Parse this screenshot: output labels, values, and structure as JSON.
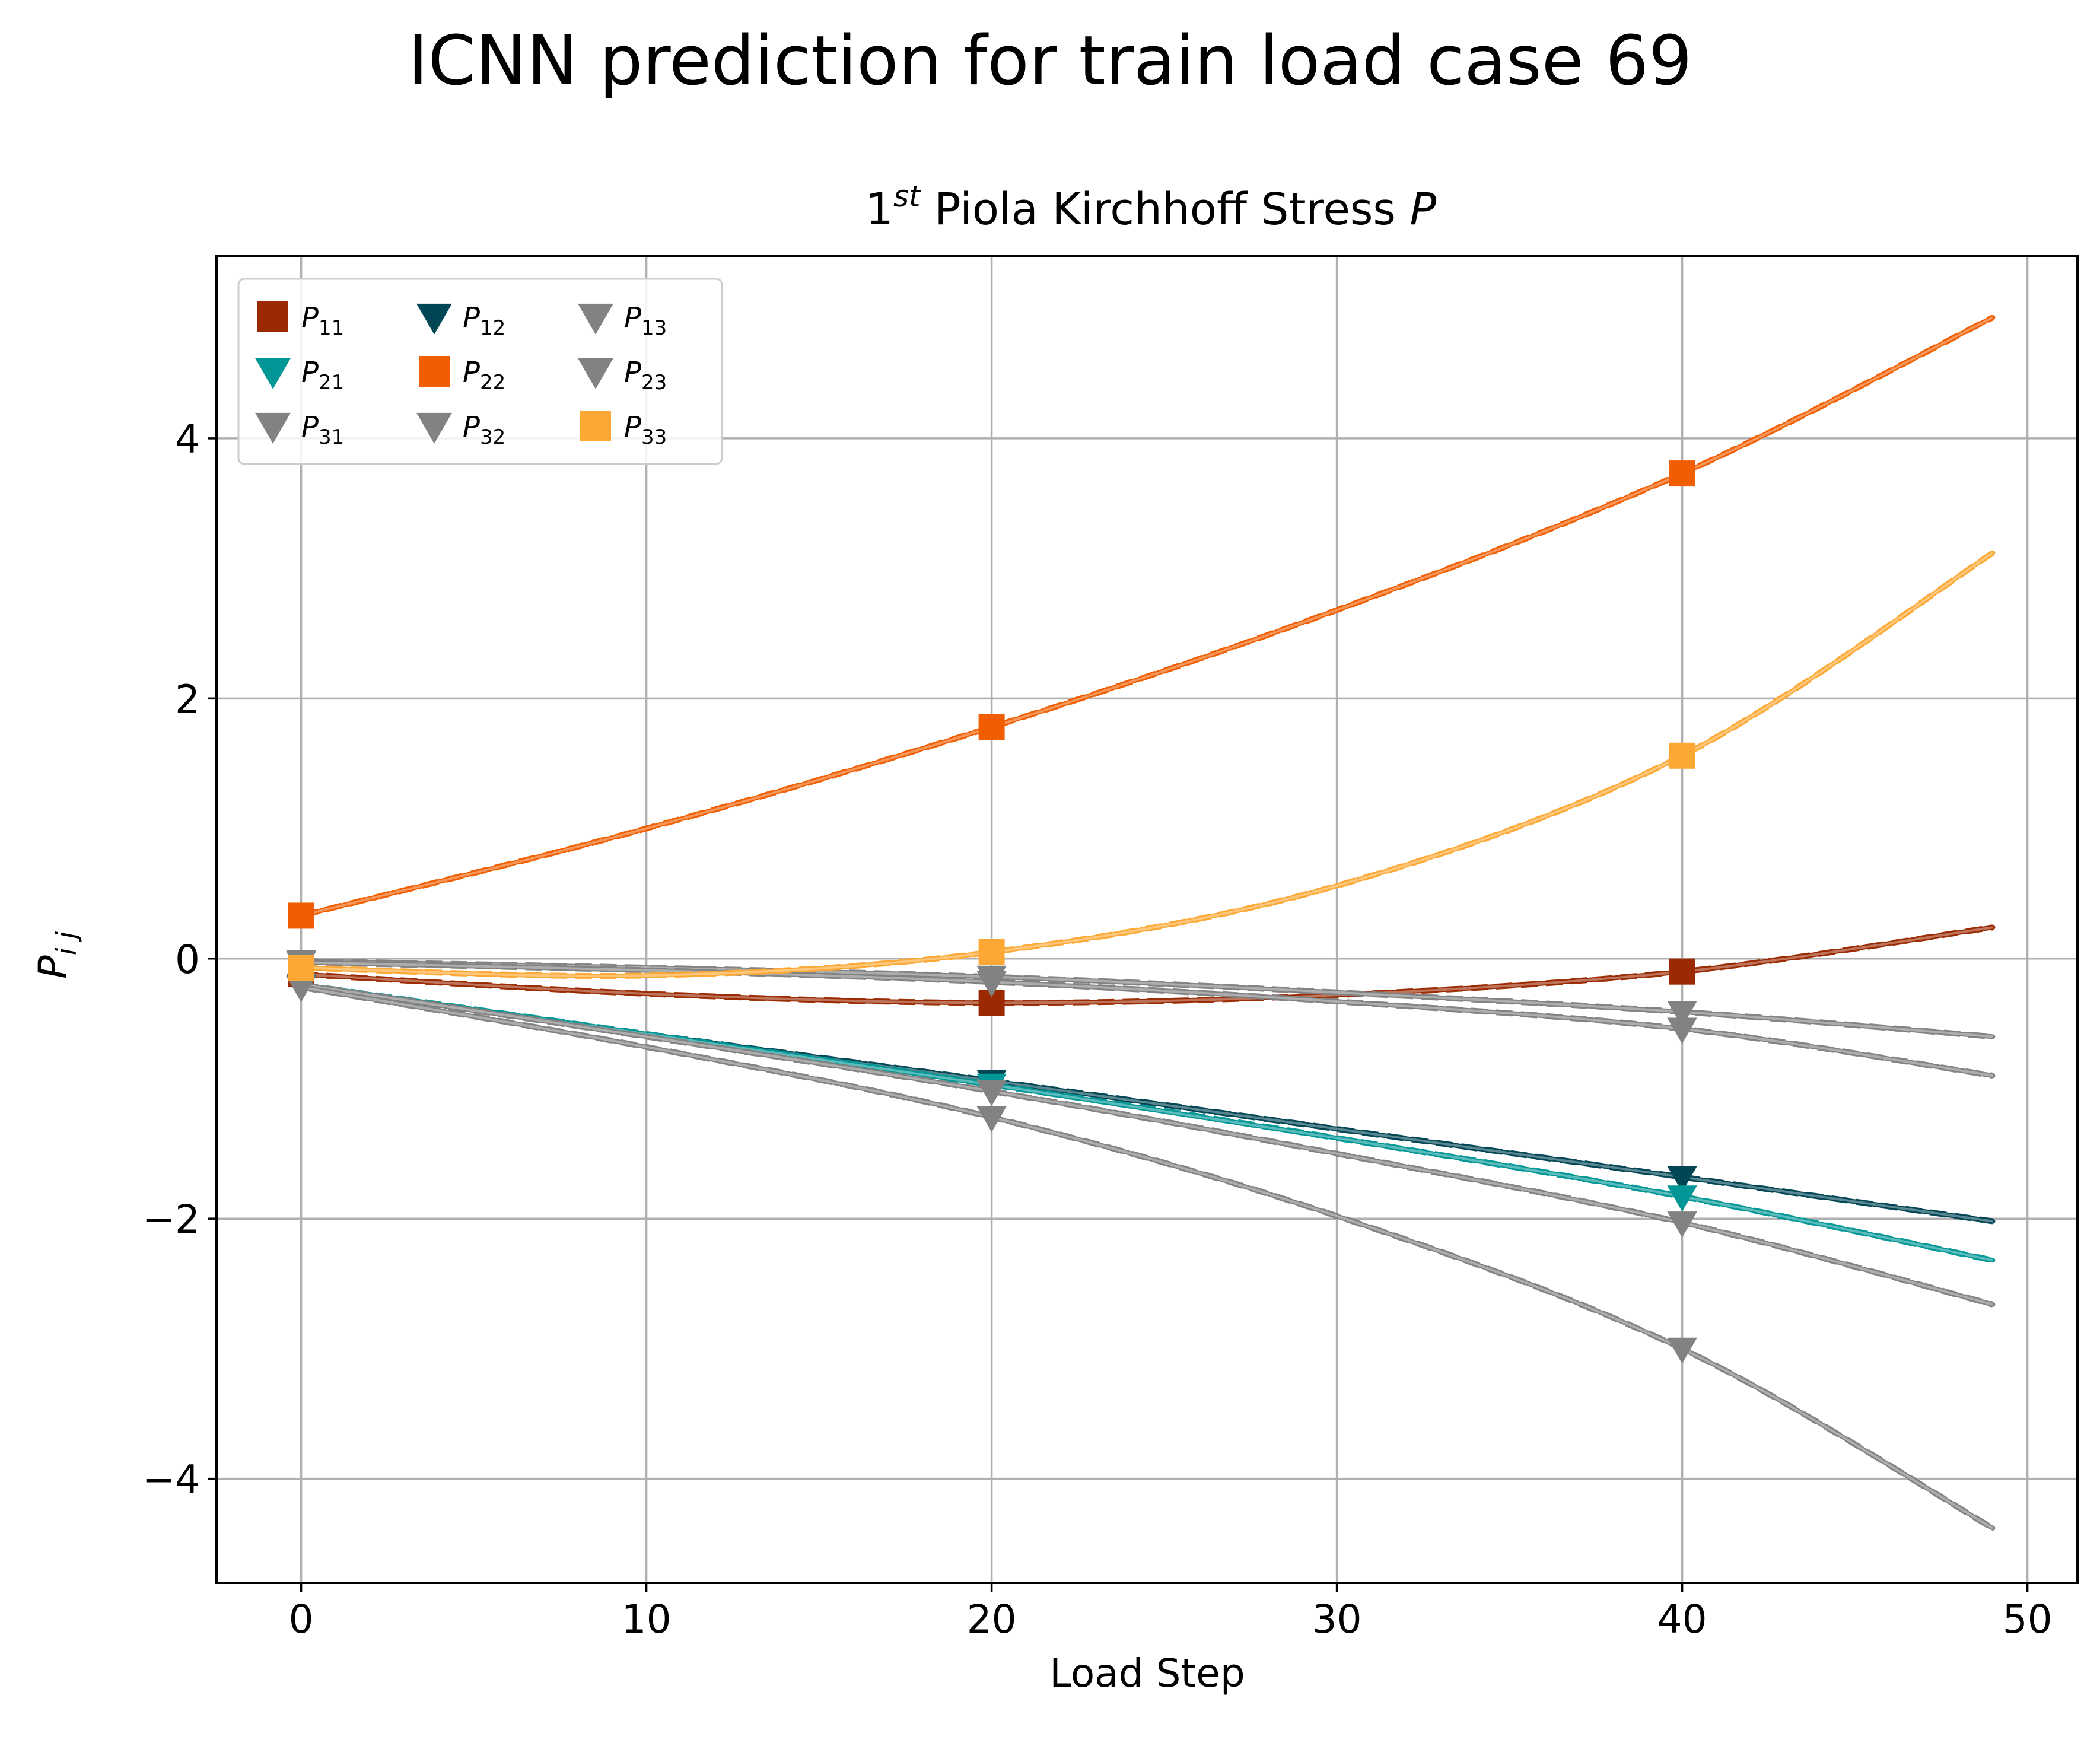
{
  "figure_title": "ICNN prediction for train load case 69",
  "chart_data": {
    "type": "line",
    "title": "1st Piola Kirchhoff Stress P",
    "title_parts": {
      "base": "1",
      "sup": "st",
      "rest": " Piola Kirchhoff Stress ",
      "italic": "P"
    },
    "xlabel": "Load Step",
    "ylabel": "P_ij",
    "ylabel_parts": {
      "base": "P",
      "sub": "i j"
    },
    "xlim": [
      -2.45,
      51.45
    ],
    "ylim": [
      -4.8,
      5.4
    ],
    "xticks": [
      0,
      10,
      20,
      30,
      40,
      50
    ],
    "yticks": [
      -4,
      -2,
      0,
      2,
      4
    ],
    "xtick_labels": [
      "0",
      "10",
      "20",
      "30",
      "40",
      "50"
    ],
    "ytick_labels": [
      "−4",
      "−2",
      "0",
      "2",
      "4"
    ],
    "grid": true,
    "legend_position": "upper-left",
    "legend_columns": 3,
    "marker_steps": [
      0,
      20,
      40
    ],
    "series": [
      {
        "name": "P11",
        "label_base": "P",
        "label_sub": "11",
        "color": "#9b2a02",
        "marker": "square",
        "x": [
          0,
          10,
          20,
          30,
          40,
          49
        ],
        "y": [
          -0.12,
          -0.27,
          -0.34,
          -0.28,
          -0.1,
          0.24
        ]
      },
      {
        "name": "P12",
        "label_base": "P",
        "label_sub": "12",
        "color": "#014654",
        "marker": "triangle-down",
        "x": [
          0,
          10,
          20,
          30,
          40,
          49
        ],
        "y": [
          -0.21,
          -0.58,
          -0.94,
          -1.31,
          -1.68,
          -2.02
        ]
      },
      {
        "name": "P13",
        "label_base": "P",
        "label_sub": "13",
        "color": "#828282",
        "marker": "triangle-down",
        "x": [
          0,
          10,
          20,
          30,
          40,
          49
        ],
        "y": [
          -0.02,
          -0.07,
          -0.14,
          -0.26,
          -0.41,
          -0.6
        ]
      },
      {
        "name": "P21",
        "label_base": "P",
        "label_sub": "21",
        "color": "#029796",
        "marker": "triangle-down",
        "x": [
          0,
          10,
          20,
          30,
          40,
          49
        ],
        "y": [
          -0.2,
          -0.58,
          -0.97,
          -1.38,
          -1.83,
          -2.32
        ]
      },
      {
        "name": "P22",
        "label_base": "P",
        "label_sub": "22",
        "color": "#f05e01",
        "marker": "square",
        "x": [
          0,
          10,
          20,
          30,
          40,
          49
        ],
        "y": [
          0.33,
          1.0,
          1.78,
          2.68,
          3.73,
          4.93
        ]
      },
      {
        "name": "P23",
        "label_base": "P",
        "label_sub": "23",
        "color": "#828282",
        "marker": "triangle-down",
        "x": [
          0,
          10,
          20,
          30,
          40,
          49
        ],
        "y": [
          -0.03,
          -0.09,
          -0.18,
          -0.33,
          -0.54,
          -0.9
        ]
      },
      {
        "name": "P31",
        "label_base": "P",
        "label_sub": "31",
        "color": "#828282",
        "marker": "triangle-down",
        "x": [
          0,
          10,
          20,
          30,
          40,
          49
        ],
        "y": [
          -0.2,
          -0.6,
          -1.02,
          -1.5,
          -2.03,
          -2.66
        ]
      },
      {
        "name": "P32",
        "label_base": "P",
        "label_sub": "32",
        "color": "#828282",
        "marker": "triangle-down",
        "x": [
          0,
          10,
          20,
          30,
          40,
          49
        ],
        "y": [
          -0.22,
          -0.68,
          -1.22,
          -1.98,
          -3.0,
          -4.38
        ]
      },
      {
        "name": "P33",
        "label_base": "P",
        "label_sub": "33",
        "color": "#fda834",
        "marker": "square",
        "x": [
          0,
          10,
          20,
          30,
          40,
          49
        ],
        "y": [
          -0.07,
          -0.13,
          0.05,
          0.56,
          1.56,
          3.12
        ]
      }
    ]
  }
}
